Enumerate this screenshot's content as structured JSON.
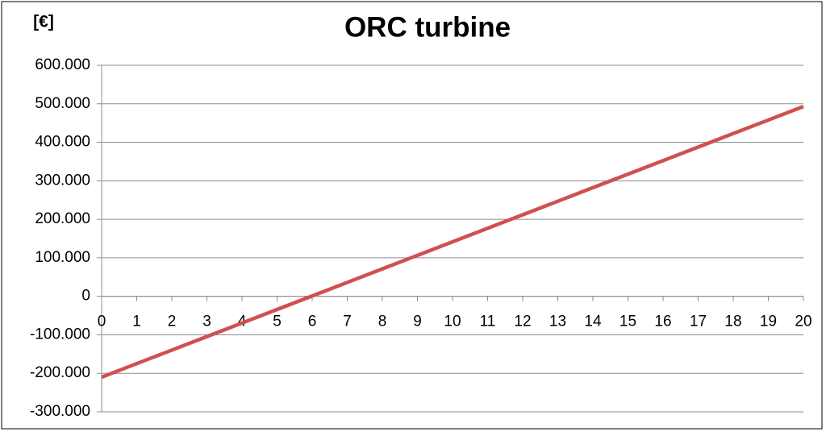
{
  "chart_data": {
    "type": "line",
    "title": "ORC turbine",
    "y_label": "[€]",
    "x": [
      0,
      1,
      2,
      3,
      4,
      5,
      6,
      7,
      8,
      9,
      10,
      11,
      12,
      13,
      14,
      15,
      16,
      17,
      18,
      19,
      20
    ],
    "xlim": [
      0,
      20
    ],
    "series": [
      {
        "name": "ORC turbine",
        "color": "#d0504f",
        "values": [
          -210000,
          -174850,
          -139700,
          -104550,
          -69400,
          -34250,
          900,
          36050,
          71200,
          106350,
          141500,
          176650,
          211800,
          246950,
          282100,
          317250,
          352400,
          387550,
          422700,
          457850,
          493000
        ]
      }
    ],
    "ylim": [
      -300000,
      600000
    ],
    "yticks": [
      {
        "value": -300000,
        "label": "-300.000"
      },
      {
        "value": -200000,
        "label": "-200.000"
      },
      {
        "value": -100000,
        "label": "-100.000"
      },
      0,
      {
        "value": 100000,
        "label": "100.000"
      },
      {
        "value": 200000,
        "label": "200.000"
      },
      {
        "value": 300000,
        "label": "300.000"
      },
      {
        "value": 400000,
        "label": "400.000"
      },
      {
        "value": 500000,
        "label": "500.000"
      },
      {
        "value": 600000,
        "label": "600.000"
      }
    ],
    "grid": true
  }
}
